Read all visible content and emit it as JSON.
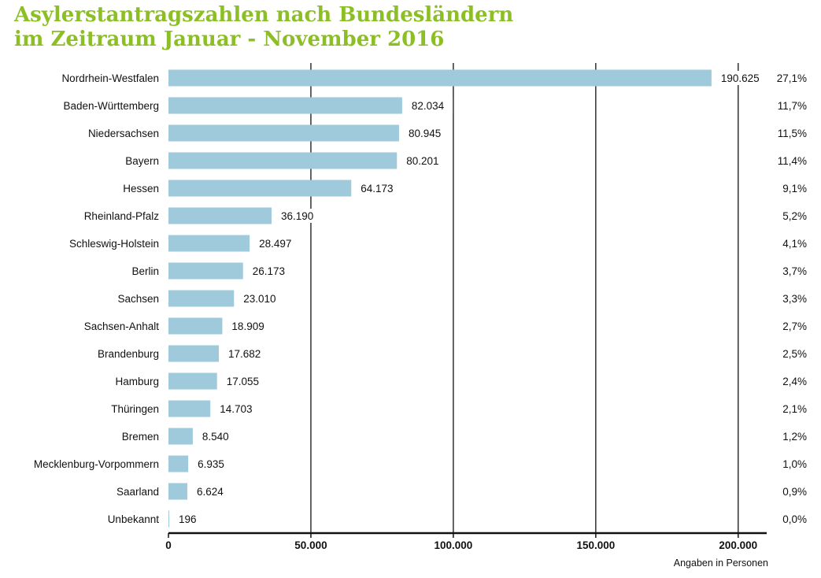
{
  "chart_data": {
    "type": "bar",
    "orientation": "horizontal",
    "title_line1": "Asylerstantragszahlen nach Bundesländern",
    "title_line2": "im Zeitraum Januar - November 2016",
    "categories": [
      "Nordrhein-Westfalen",
      "Baden-Württemberg",
      "Niedersachsen",
      "Bayern",
      "Hessen",
      "Rheinland-Pfalz",
      "Schleswig-Holstein",
      "Berlin",
      "Sachsen",
      "Sachsen-Anhalt",
      "Brandenburg",
      "Hamburg",
      "Thüringen",
      "Bremen",
      "Mecklenburg-Vorpommern",
      "Saarland",
      "Unbekannt"
    ],
    "values": [
      190625,
      82034,
      80945,
      80201,
      64173,
      36190,
      28497,
      26173,
      23010,
      18909,
      17682,
      17055,
      14703,
      8540,
      6935,
      6624,
      196
    ],
    "value_labels": [
      "190.625",
      "82.034",
      "80.945",
      "80.201",
      "64.173",
      "36.190",
      "28.497",
      "26.173",
      "23.010",
      "18.909",
      "17.682",
      "17.055",
      "14.703",
      "8.540",
      "6.935",
      "6.624",
      "196"
    ],
    "percentages": [
      "27,1%",
      "11,7%",
      "11,5%",
      "11,4%",
      "9,1%",
      "5,2%",
      "4,1%",
      "3,7%",
      "3,3%",
      "2,7%",
      "2,5%",
      "2,4%",
      "2,1%",
      "1,2%",
      "1,0%",
      "0,9%",
      "0,0%"
    ],
    "xlim": [
      0,
      210000
    ],
    "xticks": [
      0,
      50000,
      100000,
      150000,
      200000
    ],
    "xtick_labels": [
      "0",
      "50.000",
      "100.000",
      "150.000",
      "200.000"
    ],
    "xlabel": "Angaben in Personen",
    "grid": "vertical",
    "colors": {
      "bar": "#9ecadb",
      "title": "#8cbf26",
      "grid": "#111111"
    }
  }
}
